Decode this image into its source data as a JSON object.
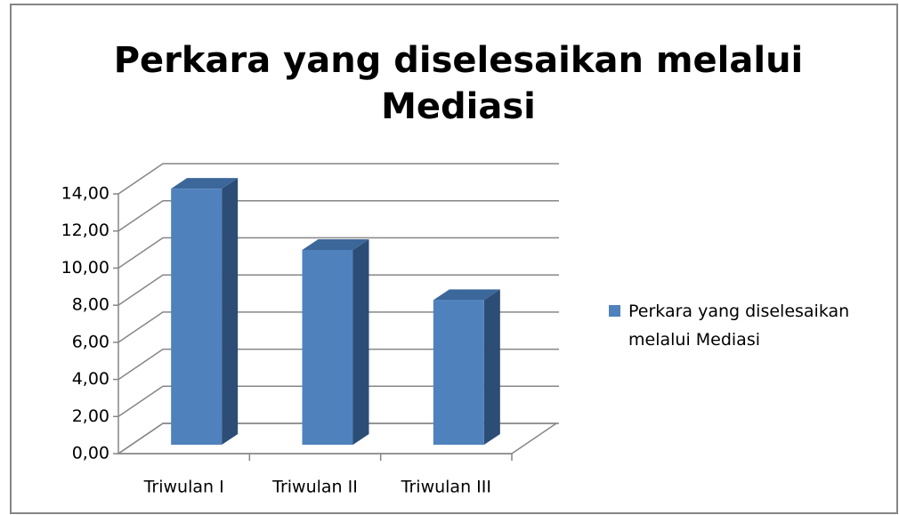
{
  "chart_data": {
    "type": "bar3d",
    "title": "Perkara yang diselesaikan melalui Mediasi",
    "categories": [
      "Triwulan I",
      "Triwulan II",
      "Triwulan III"
    ],
    "series": [
      {
        "name": "Perkara yang diselesaikan melalui Mediasi",
        "color": "#4f81bd",
        "values": [
          13.8,
          10.5,
          7.8
        ]
      }
    ],
    "ylim": [
      0,
      14
    ],
    "yticks": [
      {
        "value": 0,
        "label": "0,00"
      },
      {
        "value": 2,
        "label": "2,00"
      },
      {
        "value": 4,
        "label": "4,00"
      },
      {
        "value": 6,
        "label": "6,00"
      },
      {
        "value": 8,
        "label": "8,00"
      },
      {
        "value": 10,
        "label": "10,00"
      },
      {
        "value": 12,
        "label": "12,00"
      },
      {
        "value": 14,
        "label": "14,00"
      }
    ],
    "grid": true,
    "legend": "right"
  }
}
